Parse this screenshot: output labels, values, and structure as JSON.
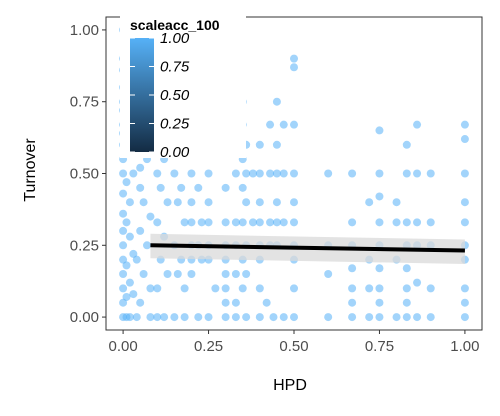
{
  "chart_data": {
    "type": "scatter",
    "title": "",
    "xlabel": "HPD",
    "ylabel": "Turnover",
    "xlim": [
      -0.05,
      1.05
    ],
    "ylim": [
      -0.045,
      1.045
    ],
    "xticks": [
      0.0,
      0.25,
      0.5,
      0.75,
      1.0
    ],
    "xtick_labels": [
      "0.00",
      "0.25",
      "0.50",
      "0.75",
      "1.00"
    ],
    "yticks": [
      0.0,
      0.25,
      0.5,
      0.75,
      1.0
    ],
    "ytick_labels": [
      "0.00",
      "0.25",
      "0.50",
      "0.75",
      "1.00"
    ],
    "grid": false,
    "point_color": "#56b1f7",
    "point_opacity": 0.55,
    "legend": {
      "title": "scaleacc_100",
      "position": "top-left",
      "labels": [
        "1.00",
        "0.75",
        "0.50",
        "0.25",
        "0.00"
      ],
      "values": [
        1.0,
        0.75,
        0.5,
        0.25,
        0.0
      ],
      "gradient_low": "#132b43",
      "gradient_high": "#56b1f7"
    },
    "trend": {
      "x": [
        0.08,
        1.0
      ],
      "y": [
        0.25,
        0.232
      ],
      "ci_upper": [
        0.29,
        0.27
      ],
      "ci_lower": [
        0.205,
        0.185
      ],
      "line_color": "#000000",
      "band_color": "#d9d9d9"
    },
    "series": [
      {
        "points": [
          [
            0.0,
            0.0
          ],
          [
            0.01,
            0.0
          ],
          [
            0.02,
            0.0
          ],
          [
            0.04,
            0.0
          ],
          [
            0.08,
            0.0
          ],
          [
            0.1,
            0.0
          ],
          [
            0.12,
            0.0
          ],
          [
            0.15,
            0.0
          ],
          [
            0.18,
            0.0
          ],
          [
            0.22,
            0.0
          ],
          [
            0.25,
            0.0
          ],
          [
            0.3,
            0.0
          ],
          [
            0.33,
            0.0
          ],
          [
            0.36,
            0.0
          ],
          [
            0.4,
            0.0
          ],
          [
            0.44,
            0.0
          ],
          [
            0.47,
            0.0
          ],
          [
            0.5,
            0.0
          ],
          [
            0.6,
            0.0
          ],
          [
            0.67,
            0.0
          ],
          [
            0.72,
            0.0
          ],
          [
            0.75,
            0.0
          ],
          [
            0.8,
            0.0
          ],
          [
            0.83,
            0.0
          ],
          [
            0.86,
            0.0
          ],
          [
            0.9,
            0.0
          ],
          [
            1.0,
            0.0
          ],
          [
            0.0,
            0.05
          ],
          [
            0.01,
            0.07
          ],
          [
            0.0,
            0.1
          ],
          [
            0.02,
            0.12
          ],
          [
            0.0,
            0.15
          ],
          [
            0.01,
            0.18
          ],
          [
            0.0,
            0.2
          ],
          [
            0.03,
            0.22
          ],
          [
            0.0,
            0.25
          ],
          [
            0.02,
            0.28
          ],
          [
            0.0,
            0.3
          ],
          [
            0.01,
            0.33
          ],
          [
            0.0,
            0.36
          ],
          [
            0.02,
            0.4
          ],
          [
            0.0,
            0.43
          ],
          [
            0.01,
            0.47
          ],
          [
            0.0,
            0.5
          ],
          [
            0.0,
            0.55
          ],
          [
            0.0,
            0.6
          ],
          [
            0.0,
            0.64
          ],
          [
            0.0,
            0.67
          ],
          [
            0.0,
            0.72
          ],
          [
            0.0,
            0.75
          ],
          [
            0.0,
            0.8
          ],
          [
            0.0,
            0.86
          ],
          [
            0.0,
            0.9
          ],
          [
            0.0,
            1.0
          ],
          [
            0.03,
            0.5
          ],
          [
            0.05,
            0.52
          ],
          [
            0.07,
            0.55
          ],
          [
            0.09,
            0.58
          ],
          [
            0.05,
            0.45
          ],
          [
            0.06,
            0.4
          ],
          [
            0.08,
            0.35
          ],
          [
            0.05,
            0.3
          ],
          [
            0.07,
            0.25
          ],
          [
            0.04,
            0.2
          ],
          [
            0.06,
            0.15
          ],
          [
            0.08,
            0.1
          ],
          [
            0.03,
            0.08
          ],
          [
            0.05,
            0.05
          ],
          [
            0.1,
            0.5
          ],
          [
            0.12,
            0.55
          ],
          [
            0.11,
            0.45
          ],
          [
            0.13,
            0.4
          ],
          [
            0.1,
            0.33
          ],
          [
            0.12,
            0.28
          ],
          [
            0.11,
            0.2
          ],
          [
            0.13,
            0.15
          ],
          [
            0.1,
            0.1
          ],
          [
            0.15,
            0.5
          ],
          [
            0.17,
            0.45
          ],
          [
            0.16,
            0.4
          ],
          [
            0.18,
            0.33
          ],
          [
            0.15,
            0.25
          ],
          [
            0.17,
            0.2
          ],
          [
            0.16,
            0.15
          ],
          [
            0.18,
            0.1
          ],
          [
            0.2,
            0.5
          ],
          [
            0.2,
            0.67
          ],
          [
            0.2,
            0.4
          ],
          [
            0.2,
            0.33
          ],
          [
            0.2,
            0.25
          ],
          [
            0.2,
            0.2
          ],
          [
            0.2,
            0.15
          ],
          [
            0.22,
            0.45
          ],
          [
            0.23,
            0.33
          ],
          [
            0.22,
            0.25
          ],
          [
            0.23,
            0.2
          ],
          [
            0.25,
            0.5
          ],
          [
            0.25,
            0.4
          ],
          [
            0.25,
            0.33
          ],
          [
            0.25,
            0.25
          ],
          [
            0.25,
            0.2
          ],
          [
            0.27,
            0.1
          ],
          [
            0.3,
            0.45
          ],
          [
            0.3,
            0.33
          ],
          [
            0.3,
            0.25
          ],
          [
            0.3,
            0.2
          ],
          [
            0.3,
            0.15
          ],
          [
            0.3,
            0.1
          ],
          [
            0.3,
            0.05
          ],
          [
            0.33,
            0.5
          ],
          [
            0.33,
            0.33
          ],
          [
            0.33,
            0.25
          ],
          [
            0.33,
            0.15
          ],
          [
            0.33,
            0.05
          ],
          [
            0.35,
            0.75
          ],
          [
            0.35,
            0.67
          ],
          [
            0.36,
            0.6
          ],
          [
            0.35,
            0.55
          ],
          [
            0.36,
            0.5
          ],
          [
            0.35,
            0.45
          ],
          [
            0.36,
            0.4
          ],
          [
            0.35,
            0.33
          ],
          [
            0.36,
            0.25
          ],
          [
            0.35,
            0.2
          ],
          [
            0.36,
            0.15
          ],
          [
            0.35,
            0.1
          ],
          [
            0.38,
            0.5
          ],
          [
            0.38,
            0.33
          ],
          [
            0.4,
            0.6
          ],
          [
            0.4,
            0.5
          ],
          [
            0.4,
            0.4
          ],
          [
            0.4,
            0.33
          ],
          [
            0.4,
            0.25
          ],
          [
            0.4,
            0.2
          ],
          [
            0.4,
            0.1
          ],
          [
            0.42,
            0.05
          ],
          [
            0.43,
            0.67
          ],
          [
            0.43,
            0.5
          ],
          [
            0.43,
            0.33
          ],
          [
            0.43,
            0.25
          ],
          [
            0.45,
            0.75
          ],
          [
            0.45,
            0.6
          ],
          [
            0.45,
            0.5
          ],
          [
            0.45,
            0.4
          ],
          [
            0.45,
            0.33
          ],
          [
            0.45,
            0.25
          ],
          [
            0.47,
            0.67
          ],
          [
            0.47,
            0.5
          ],
          [
            0.47,
            0.33
          ],
          [
            0.5,
            0.9
          ],
          [
            0.5,
            0.87
          ],
          [
            0.5,
            0.67
          ],
          [
            0.5,
            0.5
          ],
          [
            0.5,
            0.4
          ],
          [
            0.5,
            0.33
          ],
          [
            0.5,
            0.25
          ],
          [
            0.5,
            0.2
          ],
          [
            0.5,
            0.1
          ],
          [
            0.6,
            0.5
          ],
          [
            0.6,
            0.25
          ],
          [
            0.6,
            0.15
          ],
          [
            0.67,
            0.5
          ],
          [
            0.67,
            0.33
          ],
          [
            0.67,
            0.25
          ],
          [
            0.67,
            0.17
          ],
          [
            0.67,
            0.1
          ],
          [
            0.67,
            0.05
          ],
          [
            0.72,
            0.4
          ],
          [
            0.72,
            0.2
          ],
          [
            0.72,
            0.1
          ],
          [
            0.75,
            0.65
          ],
          [
            0.75,
            0.5
          ],
          [
            0.75,
            0.42
          ],
          [
            0.75,
            0.33
          ],
          [
            0.75,
            0.25
          ],
          [
            0.75,
            0.17
          ],
          [
            0.75,
            0.1
          ],
          [
            0.75,
            0.05
          ],
          [
            0.8,
            0.4
          ],
          [
            0.8,
            0.33
          ],
          [
            0.8,
            0.2
          ],
          [
            0.83,
            0.6
          ],
          [
            0.83,
            0.5
          ],
          [
            0.83,
            0.33
          ],
          [
            0.83,
            0.25
          ],
          [
            0.83,
            0.17
          ],
          [
            0.83,
            0.1
          ],
          [
            0.83,
            0.05
          ],
          [
            0.86,
            0.67
          ],
          [
            0.86,
            0.5
          ],
          [
            0.86,
            0.33
          ],
          [
            0.86,
            0.25
          ],
          [
            0.86,
            0.12
          ],
          [
            0.9,
            0.5
          ],
          [
            0.9,
            0.33
          ],
          [
            0.9,
            0.25
          ],
          [
            0.9,
            0.1
          ],
          [
            1.0,
            0.67
          ],
          [
            1.0,
            0.62
          ],
          [
            1.0,
            0.5
          ],
          [
            1.0,
            0.4
          ],
          [
            1.0,
            0.33
          ],
          [
            1.0,
            0.25
          ],
          [
            1.0,
            0.2
          ],
          [
            1.0,
            0.1
          ],
          [
            1.0,
            0.05
          ]
        ]
      }
    ]
  }
}
